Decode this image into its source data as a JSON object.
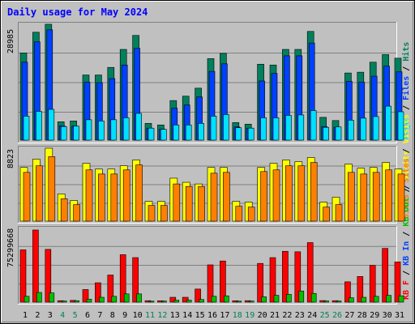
{
  "title": "Daily usage for May 2024",
  "colors": {
    "page_bg": "#C0C0C0",
    "plot_bg": "#C0C0C0",
    "title_text": "#0000FF",
    "hits": "#00805C",
    "files": "#0040FF",
    "pages": "#00E0FF",
    "visits": "#FFFF00",
    "sites": "#FF8000",
    "kb_in": "#FF0000",
    "kb_out": "#00C000",
    "weekend_label": "#00805C",
    "weekday_label": "#000000"
  },
  "chart_data": [
    {
      "type": "bar",
      "name": "hits-files-pages",
      "max_label": "28985",
      "legend": [
        "Hits",
        "/",
        "Files",
        "/",
        "Pages"
      ],
      "ylim": [
        0,
        28985
      ],
      "categories": [
        "1",
        "2",
        "3",
        "4",
        "5",
        "6",
        "7",
        "8",
        "9",
        "10",
        "11",
        "12",
        "13",
        "14",
        "15",
        "16",
        "17",
        "18",
        "19",
        "20",
        "21",
        "22",
        "23",
        "24",
        "25",
        "26",
        "27",
        "28",
        "29",
        "30",
        "31"
      ],
      "series": [
        {
          "name": "Hits",
          "values": [
            21800,
            27000,
            29000,
            4600,
            4800,
            16300,
            16300,
            18200,
            22700,
            26200,
            4200,
            3800,
            9900,
            11000,
            13000,
            20400,
            21700,
            4400,
            4000,
            19000,
            18800,
            22700,
            22700,
            27200,
            5700,
            4900,
            16800,
            17000,
            19500,
            21400,
            20500
          ]
        },
        {
          "name": "Files",
          "values": [
            19500,
            24600,
            27600,
            3600,
            3500,
            14500,
            14400,
            15400,
            18800,
            23000,
            3000,
            2700,
            8000,
            8800,
            10800,
            17200,
            19100,
            3300,
            3000,
            14800,
            16700,
            21100,
            21100,
            24300,
            3400,
            3200,
            14700,
            14500,
            16000,
            18500,
            17100
          ]
        },
        {
          "name": "Pages",
          "values": [
            6000,
            7200,
            7700,
            3400,
            3500,
            5100,
            4800,
            5100,
            5600,
            6700,
            3000,
            2700,
            3800,
            3800,
            4200,
            6000,
            6400,
            3100,
            3000,
            5600,
            5600,
            6200,
            6300,
            7400,
            3200,
            3300,
            5000,
            5500,
            5900,
            8500,
            7100
          ]
        }
      ]
    },
    {
      "type": "bar",
      "name": "visits-sites",
      "max_label": "8823",
      "legend": [
        "Visits",
        "/",
        "Sites"
      ],
      "ylim": [
        0,
        8823
      ],
      "categories": [
        "1",
        "2",
        "3",
        "4",
        "5",
        "6",
        "7",
        "8",
        "9",
        "10",
        "11",
        "12",
        "13",
        "14",
        "15",
        "16",
        "17",
        "18",
        "19",
        "20",
        "21",
        "22",
        "23",
        "24",
        "25",
        "26",
        "27",
        "28",
        "29",
        "30",
        "31"
      ],
      "series": [
        {
          "name": "Visits",
          "values": [
            6500,
            7500,
            8823,
            3300,
            2500,
            7000,
            6300,
            6300,
            6700,
            7400,
            2400,
            2400,
            5200,
            4700,
            4500,
            6500,
            6500,
            2400,
            2300,
            6500,
            7000,
            7400,
            7200,
            7700,
            2300,
            2900,
            6900,
            6400,
            6500,
            7100,
            6300
          ]
        },
        {
          "name": "Sites",
          "values": [
            5900,
            6700,
            7800,
            2700,
            2000,
            6200,
            5700,
            5700,
            6200,
            6800,
            1900,
            1900,
            4500,
            4200,
            4200,
            5800,
            5900,
            1800,
            1700,
            6000,
            6200,
            6700,
            6700,
            7100,
            1700,
            2000,
            5900,
            5700,
            5900,
            6200,
            5700
          ]
        }
      ]
    },
    {
      "type": "bar",
      "name": "kb-in-out",
      "max_label": "75299668",
      "legend": [
        "KB F",
        "/",
        "KB In",
        "/",
        "KB Out",
        "/",
        "Sites",
        "/",
        "Visits"
      ],
      "ylim": [
        0,
        75299668
      ],
      "categories": [
        "1",
        "2",
        "3",
        "4",
        "5",
        "6",
        "7",
        "8",
        "9",
        "10",
        "11",
        "12",
        "13",
        "14",
        "15",
        "16",
        "17",
        "18",
        "19",
        "20",
        "21",
        "22",
        "23",
        "24",
        "25",
        "26",
        "27",
        "28",
        "29",
        "30",
        "31"
      ],
      "series": [
        {
          "name": "KB F",
          "values": [
            54000000,
            74500000,
            54500000,
            1500000,
            1800000,
            13000000,
            20000000,
            28000000,
            49000000,
            46000000,
            1500000,
            1400000,
            5000000,
            5000000,
            13500000,
            38500000,
            42500000,
            1400000,
            1500000,
            40000000,
            46000000,
            52500000,
            52000000,
            61500000,
            1600000,
            1500000,
            21000000,
            26500000,
            38000000,
            55500000,
            41500000
          ]
        },
        {
          "name": "KB Out",
          "values": [
            6000000,
            10000000,
            9500000,
            1200000,
            1500000,
            3000000,
            5000000,
            6000000,
            8500000,
            8500000,
            1000000,
            1100000,
            2000000,
            2000000,
            2700000,
            6000000,
            6500000,
            1000000,
            1100000,
            5500000,
            7000000,
            8000000,
            11500000,
            9000000,
            1200000,
            1100000,
            4500000,
            5000000,
            6000000,
            7000000,
            6500000
          ]
        }
      ]
    }
  ]
}
